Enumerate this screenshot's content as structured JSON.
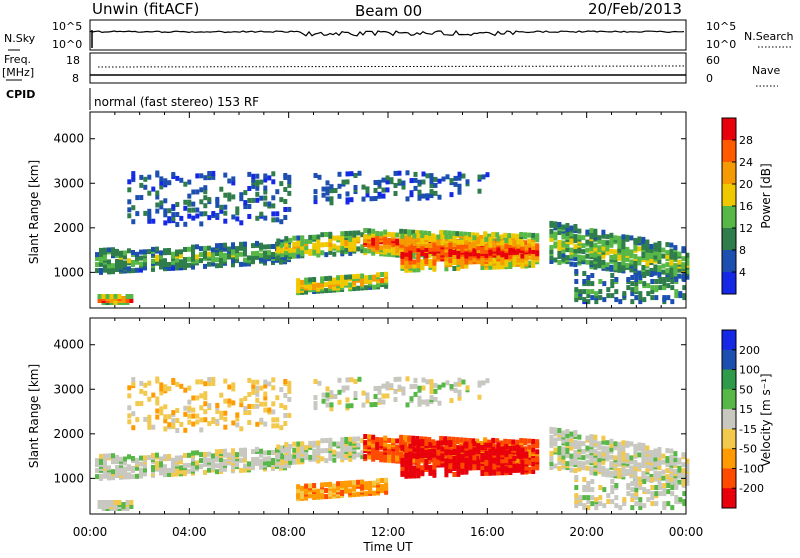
{
  "header": {
    "station": "Unwin (fitACF)",
    "beam": "Beam 00",
    "date": "20/Feb/2013"
  },
  "noise_panel": {
    "left_label": "N.Sky",
    "left_ticks": [
      "10^5",
      "10^0"
    ],
    "right_ticks": [
      "10^5",
      "10^0"
    ],
    "right_label": "N.Search"
  },
  "freq_panel": {
    "left_label_1": "Freq.",
    "left_label_2": "[MHz]",
    "left_ticks": [
      "18",
      "8"
    ],
    "right_ticks": [
      "60",
      "0"
    ],
    "right_label": "Nave"
  },
  "cpid": {
    "label": "CPID",
    "mode": "normal (fast stereo) 153 RF"
  },
  "colors": {
    "power_scale": [
      "#1428e6",
      "#1c4fb0",
      "#2e7d4a",
      "#57b848",
      "#f0c800",
      "#f59a00",
      "#ff5a00",
      "#e8000c"
    ],
    "velocity_scale": [
      "#e8000c",
      "#ff4a00",
      "#ff9a00",
      "#f2c94c",
      "#c8c8c0",
      "#57b848",
      "#2e9a4a",
      "#1c4fb0",
      "#1428e6"
    ]
  },
  "chart_data": [
    {
      "type": "heatmap",
      "title": "",
      "xlabel": "",
      "ylabel": "Slant Range [km]",
      "xlim": [
        "00:00",
        "24:00"
      ],
      "ylim": [
        200,
        4600
      ],
      "y_ticks": [
        1000,
        2000,
        3000,
        4000
      ],
      "colorbar": {
        "label": "Power [dB]",
        "range": [
          0,
          32
        ],
        "ticks": [
          4,
          8,
          12,
          16,
          20,
          24,
          28
        ]
      }
    },
    {
      "type": "heatmap",
      "title": "",
      "xlabel": "Time UT",
      "ylabel": "Slant Range [km]",
      "xlim": [
        "00:00",
        "24:00"
      ],
      "ylim": [
        200,
        4600
      ],
      "x_ticks": [
        "00:00",
        "04:00",
        "08:00",
        "12:00",
        "16:00",
        "20:00",
        "00:00"
      ],
      "y_ticks": [
        1000,
        2000,
        3000,
        4000
      ],
      "colorbar": {
        "label": "Velocity [m s⁻¹]",
        "range": [
          -250,
          250
        ],
        "ticks": [
          200,
          100,
          50,
          15,
          -15,
          -50,
          -100,
          -200
        ]
      }
    }
  ]
}
